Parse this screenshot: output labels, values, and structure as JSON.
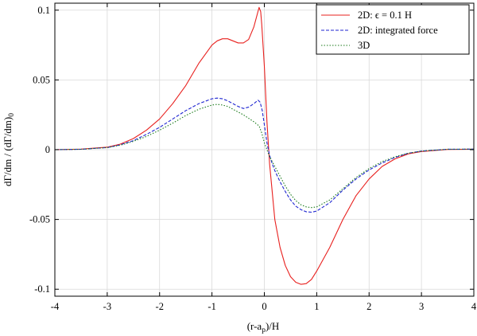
{
  "chart_data": {
    "type": "line",
    "xlabel": "(r-a_p)/H",
    "ylabel": "dΓ/dm / (dΓ/dm)_0",
    "xlim": [
      -4,
      4
    ],
    "ylim": [
      -0.105,
      0.105
    ],
    "grid": true,
    "legend_position": "top-right",
    "x_ticks": [
      -4,
      -3,
      -2,
      -1,
      0,
      1,
      2,
      3,
      4
    ],
    "y_ticks": [
      -0.1,
      -0.05,
      0,
      0.05,
      0.1
    ],
    "x_tick_labels": [
      "-4",
      "-3",
      "-2",
      "-1",
      "0",
      "1",
      "2",
      "3",
      "4"
    ],
    "y_tick_labels": [
      "-0.1",
      "-0.05",
      "0",
      "0.05",
      "0.1"
    ],
    "series": [
      {
        "name": "2D: ϵ = 0.1 H",
        "color": "#e8201e",
        "dash": "solid",
        "points": [
          [
            -4,
            0
          ],
          [
            -3.5,
            0.0004
          ],
          [
            -3,
            0.0018
          ],
          [
            -2.75,
            0.004
          ],
          [
            -2.5,
            0.008
          ],
          [
            -2.25,
            0.014
          ],
          [
            -2,
            0.022
          ],
          [
            -1.75,
            0.033
          ],
          [
            -1.5,
            0.046
          ],
          [
            -1.25,
            0.062
          ],
          [
            -1,
            0.075
          ],
          [
            -0.9,
            0.078
          ],
          [
            -0.8,
            0.0795
          ],
          [
            -0.7,
            0.0795
          ],
          [
            -0.6,
            0.078
          ],
          [
            -0.5,
            0.0765
          ],
          [
            -0.4,
            0.0765
          ],
          [
            -0.3,
            0.079
          ],
          [
            -0.2,
            0.088
          ],
          [
            -0.15,
            0.095
          ],
          [
            -0.1,
            0.102
          ],
          [
            -0.07,
            0.099
          ],
          [
            -0.05,
            0.09
          ],
          [
            0,
            0.06
          ],
          [
            0.05,
            0.02
          ],
          [
            0.1,
            -0.01
          ],
          [
            0.15,
            -0.03
          ],
          [
            0.2,
            -0.05
          ],
          [
            0.3,
            -0.07
          ],
          [
            0.4,
            -0.083
          ],
          [
            0.5,
            -0.091
          ],
          [
            0.6,
            -0.095
          ],
          [
            0.7,
            -0.0965
          ],
          [
            0.8,
            -0.096
          ],
          [
            0.9,
            -0.093
          ],
          [
            1,
            -0.087
          ],
          [
            1.25,
            -0.07
          ],
          [
            1.5,
            -0.05
          ],
          [
            1.75,
            -0.033
          ],
          [
            2,
            -0.021
          ],
          [
            2.25,
            -0.012
          ],
          [
            2.5,
            -0.0065
          ],
          [
            2.75,
            -0.003
          ],
          [
            3,
            -0.0013
          ],
          [
            3.5,
            0.0002
          ],
          [
            4,
            0.0003
          ]
        ]
      },
      {
        "name": "2D: integrated force",
        "color": "#1f26d1",
        "dash": "dashed",
        "points": [
          [
            -4,
            0
          ],
          [
            -3.5,
            0.0003
          ],
          [
            -3,
            0.0015
          ],
          [
            -2.75,
            0.0035
          ],
          [
            -2.5,
            0.0065
          ],
          [
            -2.25,
            0.011
          ],
          [
            -2,
            0.016
          ],
          [
            -1.75,
            0.022
          ],
          [
            -1.5,
            0.028
          ],
          [
            -1.25,
            0.033
          ],
          [
            -1,
            0.0365
          ],
          [
            -0.9,
            0.037
          ],
          [
            -0.8,
            0.0365
          ],
          [
            -0.7,
            0.035
          ],
          [
            -0.6,
            0.033
          ],
          [
            -0.5,
            0.031
          ],
          [
            -0.4,
            0.0295
          ],
          [
            -0.3,
            0.0305
          ],
          [
            -0.2,
            0.033
          ],
          [
            -0.12,
            0.0355
          ],
          [
            -0.08,
            0.034
          ],
          [
            -0.04,
            0.028
          ],
          [
            0,
            0.018
          ],
          [
            0.05,
            0.005
          ],
          [
            0.1,
            -0.004
          ],
          [
            0.15,
            -0.01
          ],
          [
            0.2,
            -0.015
          ],
          [
            0.3,
            -0.023
          ],
          [
            0.4,
            -0.03
          ],
          [
            0.5,
            -0.036
          ],
          [
            0.6,
            -0.0405
          ],
          [
            0.7,
            -0.043
          ],
          [
            0.8,
            -0.0445
          ],
          [
            0.9,
            -0.0448
          ],
          [
            1,
            -0.044
          ],
          [
            1.25,
            -0.038
          ],
          [
            1.5,
            -0.029
          ],
          [
            1.75,
            -0.021
          ],
          [
            2,
            -0.0145
          ],
          [
            2.25,
            -0.0095
          ],
          [
            2.5,
            -0.0055
          ],
          [
            2.75,
            -0.0025
          ],
          [
            3,
            -0.001
          ],
          [
            3.5,
            0.0003
          ],
          [
            4,
            0.0004
          ]
        ]
      },
      {
        "name": "3D",
        "color": "#1a7a1a",
        "dash": "dotted",
        "points": [
          [
            -4,
            0
          ],
          [
            -3.5,
            0.0003
          ],
          [
            -3,
            0.0015
          ],
          [
            -2.75,
            0.0032
          ],
          [
            -2.5,
            0.006
          ],
          [
            -2.25,
            0.0095
          ],
          [
            -2,
            0.014
          ],
          [
            -1.75,
            0.019
          ],
          [
            -1.5,
            0.0245
          ],
          [
            -1.25,
            0.029
          ],
          [
            -1,
            0.032
          ],
          [
            -0.9,
            0.0325
          ],
          [
            -0.8,
            0.032
          ],
          [
            -0.7,
            0.031
          ],
          [
            -0.6,
            0.029
          ],
          [
            -0.5,
            0.027
          ],
          [
            -0.4,
            0.025
          ],
          [
            -0.3,
            0.0225
          ],
          [
            -0.2,
            0.02
          ],
          [
            -0.1,
            0.017
          ],
          [
            -0.05,
            0.012
          ],
          [
            0,
            0.005
          ],
          [
            0.05,
            0
          ],
          [
            0.1,
            -0.005
          ],
          [
            0.2,
            -0.012
          ],
          [
            0.3,
            -0.019
          ],
          [
            0.4,
            -0.026
          ],
          [
            0.5,
            -0.032
          ],
          [
            0.6,
            -0.0365
          ],
          [
            0.7,
            -0.0395
          ],
          [
            0.8,
            -0.041
          ],
          [
            0.9,
            -0.0415
          ],
          [
            1,
            -0.041
          ],
          [
            1.25,
            -0.036
          ],
          [
            1.5,
            -0.028
          ],
          [
            1.75,
            -0.02
          ],
          [
            2,
            -0.0135
          ],
          [
            2.25,
            -0.0085
          ],
          [
            2.5,
            -0.005
          ],
          [
            2.75,
            -0.0025
          ],
          [
            3,
            -0.001
          ],
          [
            3.5,
            0.0003
          ],
          [
            4,
            0.0004
          ]
        ]
      }
    ]
  }
}
